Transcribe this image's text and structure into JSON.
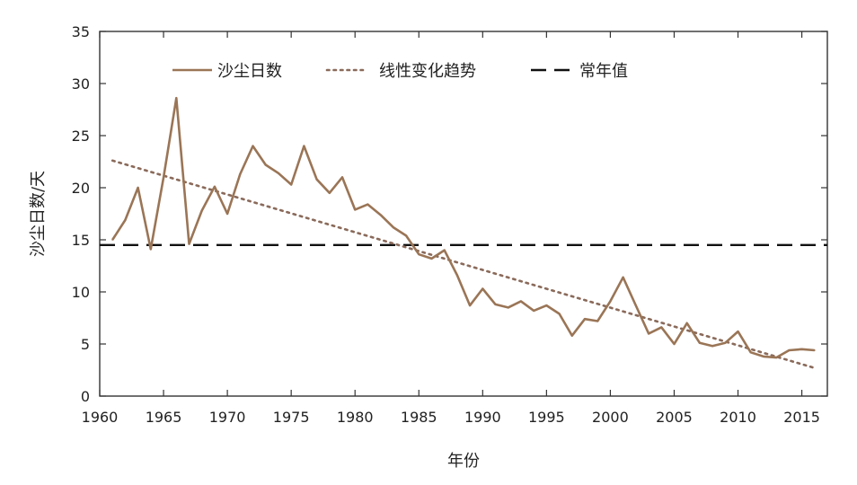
{
  "chart_data": {
    "type": "line",
    "title": "",
    "xlabel": "年份",
    "ylabel": "沙尘日数/天",
    "xlim": [
      1960,
      2017
    ],
    "ylim": [
      0,
      35
    ],
    "xticks": [
      1960,
      1965,
      1970,
      1975,
      1980,
      1985,
      1990,
      1995,
      2000,
      2005,
      2010,
      2015
    ],
    "yticks": [
      0,
      5,
      10,
      15,
      20,
      25,
      30,
      35
    ],
    "grid": false,
    "legend_position": "top-left",
    "series": [
      {
        "name": "沙尘日数",
        "style": "solid",
        "color": "#9a7556",
        "x": [
          1961,
          1962,
          1963,
          1964,
          1965,
          1966,
          1967,
          1968,
          1969,
          1970,
          1971,
          1972,
          1973,
          1974,
          1975,
          1976,
          1977,
          1978,
          1979,
          1980,
          1981,
          1982,
          1983,
          1984,
          1985,
          1986,
          1987,
          1988,
          1989,
          1990,
          1991,
          1992,
          1993,
          1994,
          1995,
          1996,
          1997,
          1998,
          1999,
          2000,
          2001,
          2002,
          2003,
          2004,
          2005,
          2006,
          2007,
          2008,
          2009,
          2010,
          2011,
          2012,
          2013,
          2014,
          2015,
          2016
        ],
        "values": [
          15.0,
          16.9,
          20.0,
          14.1,
          21.0,
          28.6,
          14.6,
          17.8,
          20.1,
          17.5,
          21.3,
          24.0,
          22.2,
          21.4,
          20.3,
          24.0,
          20.8,
          19.5,
          21.0,
          17.9,
          18.4,
          17.4,
          16.2,
          15.4,
          13.6,
          13.2,
          14.0,
          11.6,
          8.7,
          10.3,
          8.8,
          8.5,
          9.1,
          8.2,
          8.7,
          7.9,
          5.8,
          7.4,
          7.2,
          9.1,
          11.4,
          8.7,
          6.0,
          6.6,
          5.0,
          7.0,
          5.1,
          4.8,
          5.1,
          6.2,
          4.2,
          3.8,
          3.7,
          4.4,
          4.5,
          4.4
        ]
      },
      {
        "name": "线性变化趋势",
        "style": "dotted",
        "color": "#8a6a5a",
        "x": [
          1961,
          2016
        ],
        "values": [
          22.6,
          2.7
        ]
      },
      {
        "name": "常年值",
        "style": "dashed",
        "color": "#111111",
        "x": [
          1960,
          2017
        ],
        "values": [
          14.5,
          14.5
        ]
      }
    ]
  }
}
